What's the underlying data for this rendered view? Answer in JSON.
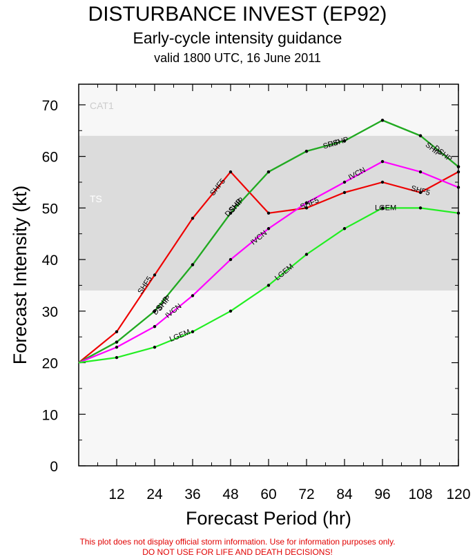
{
  "header": {
    "title": "DISTURBANCE INVEST (EP92)",
    "subtitle": "Early-cycle intensity guidance",
    "valid": "valid 1800 UTC, 16 June 2011"
  },
  "footer": {
    "line1": "This plot does not display official storm information. Use for information purposes only.",
    "line2": "DO NOT USE FOR LIFE AND DEATH DECISIONS!"
  },
  "chart_data": {
    "type": "line",
    "xlabel": "Forecast Period (hr)",
    "ylabel": "Forecast Intensity (kt)",
    "xlim": [
      0,
      120
    ],
    "ylim": [
      0,
      74
    ],
    "xticks": [
      12,
      24,
      36,
      48,
      60,
      72,
      84,
      96,
      108,
      120
    ],
    "yticks": [
      0,
      10,
      20,
      30,
      40,
      50,
      60,
      70
    ],
    "bands": [
      {
        "label": "TS",
        "from": 34,
        "to": 64,
        "color": "#dcdcdc"
      },
      {
        "label": "CAT1",
        "from": 64,
        "to": 74,
        "color": "#f7f7f7"
      }
    ],
    "series": [
      {
        "name": "SHF5",
        "color": "#ee0000",
        "x": [
          0,
          12,
          24,
          36,
          48,
          60,
          72,
          84,
          96,
          108,
          120
        ],
        "y": [
          20,
          26,
          37,
          48,
          57,
          49,
          50,
          53,
          55,
          53,
          57
        ],
        "labels": [
          {
            "text": "SHF5",
            "x": 21,
            "y": 35
          },
          {
            "text": "SHF5",
            "x": 44,
            "y": 54
          },
          {
            "text": "SHF5",
            "x": 73,
            "y": 50.8
          },
          {
            "text": "SHF5",
            "x": 108,
            "y": 53.3
          }
        ]
      },
      {
        "name": "SHIP",
        "color": "#22aa22",
        "x": [
          0,
          12,
          24,
          36,
          48,
          60,
          72,
          84,
          96,
          108,
          120
        ],
        "y": [
          20,
          24,
          30,
          39,
          49,
          57,
          61,
          63,
          67,
          64,
          58
        ],
        "labels": [
          {
            "text": "SHIP",
            "x": 27,
            "y": 31.5
          },
          {
            "text": "SHIP",
            "x": 50,
            "y": 50.5
          },
          {
            "text": "SHIP",
            "x": 80,
            "y": 62.3
          },
          {
            "text": "SHIP",
            "x": 112,
            "y": 61.3
          }
        ]
      },
      {
        "name": "DSHP",
        "color": "#22aa22",
        "x": [
          0,
          12,
          24,
          36,
          48,
          60,
          72,
          84,
          96,
          108,
          120
        ],
        "y": [
          20,
          24,
          30,
          39,
          49,
          57,
          61,
          63,
          67,
          64,
          58
        ],
        "labels": [
          {
            "text": "DSHP",
            "x": 26,
            "y": 31
          },
          {
            "text": "DSHP",
            "x": 49,
            "y": 50
          },
          {
            "text": "DSHP",
            "x": 82,
            "y": 62.7
          },
          {
            "text": "DSHP",
            "x": 115,
            "y": 60.5
          }
        ]
      },
      {
        "name": "IVCN",
        "color": "#ff00ff",
        "x": [
          0,
          12,
          24,
          36,
          48,
          60,
          72,
          84,
          96,
          108,
          120
        ],
        "y": [
          20,
          23,
          27,
          33,
          40,
          46,
          51,
          55,
          59,
          57,
          54
        ],
        "labels": [
          {
            "text": "IVCN",
            "x": 30,
            "y": 30
          },
          {
            "text": "IVCN",
            "x": 57,
            "y": 44.2
          },
          {
            "text": "IVCN",
            "x": 88,
            "y": 56.6
          }
        ]
      },
      {
        "name": "LGEM",
        "color": "#22ee22",
        "x": [
          0,
          12,
          24,
          36,
          48,
          60,
          72,
          84,
          96,
          108,
          120
        ],
        "y": [
          20,
          21,
          23,
          26,
          30,
          35,
          41,
          46,
          50,
          50,
          49
        ],
        "labels": [
          {
            "text": "LGEM",
            "x": 32,
            "y": 25.2
          },
          {
            "text": "LGEM",
            "x": 65,
            "y": 37.5
          },
          {
            "text": "LGEM",
            "x": 97,
            "y": 50
          }
        ]
      }
    ]
  }
}
